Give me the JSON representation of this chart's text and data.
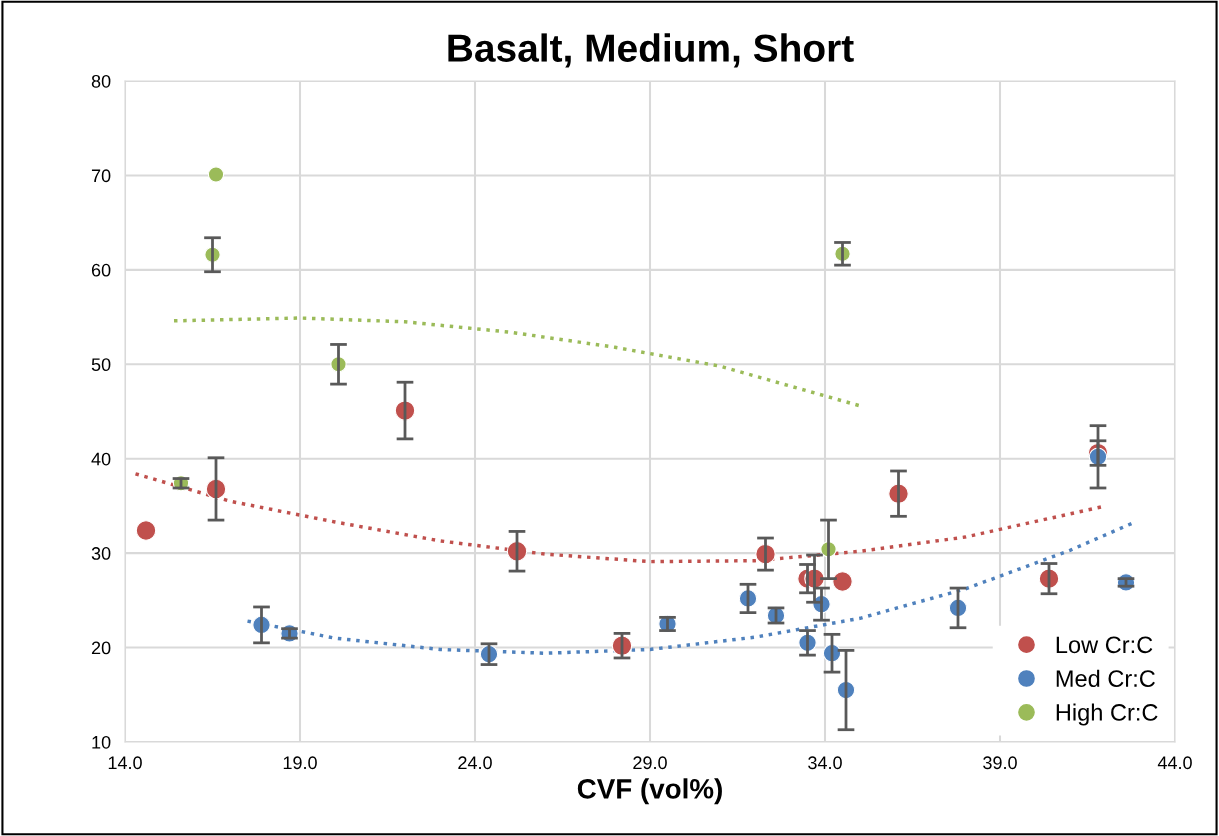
{
  "chart_data": {
    "type": "scatter",
    "title": "Basalt, Medium, Short",
    "xlabel": "CVF (vol%)",
    "xlim": [
      14,
      44
    ],
    "ylim": [
      10,
      80
    ],
    "xticks": [
      {
        "value": 14,
        "label": "14.0"
      },
      {
        "value": 19,
        "label": "19.0"
      },
      {
        "value": 24,
        "label": "24.0"
      },
      {
        "value": 29,
        "label": "29.0"
      },
      {
        "value": 34,
        "label": "34.0"
      },
      {
        "value": 39,
        "label": "39.0"
      },
      {
        "value": 44,
        "label": "44.0"
      }
    ],
    "yticks": [
      10,
      20,
      30,
      40,
      50,
      60,
      70,
      80
    ],
    "grid": true,
    "legend": "bottom right",
    "marker": "circle",
    "series": [
      {
        "name": "Low Cr:C",
        "color": "#c0504d",
        "x": [
          14.6,
          16.6,
          22.0,
          25.2,
          28.2,
          32.3,
          33.5,
          33.7,
          34.5,
          36.1,
          40.4,
          41.8
        ],
        "values": [
          32.4,
          36.8,
          45.1,
          30.2,
          20.2,
          29.9,
          27.3,
          27.3,
          27.0,
          36.3,
          27.3,
          40.6
        ],
        "errors": [
          null,
          3.3,
          3.0,
          2.1,
          1.3,
          1.7,
          1.5,
          2.5,
          null,
          2.4,
          1.6,
          1.3
        ]
      },
      {
        "name": "Med Cr:C",
        "color": "#4f81bd",
        "x": [
          17.9,
          18.7,
          24.4,
          29.5,
          31.8,
          32.6,
          33.5,
          33.9,
          34.2,
          34.6,
          37.8,
          41.8,
          42.6
        ],
        "values": [
          22.4,
          21.5,
          19.3,
          22.5,
          25.2,
          23.4,
          20.5,
          24.6,
          19.4,
          15.5,
          24.2,
          40.2,
          26.9
        ],
        "errors": [
          1.9,
          0.5,
          1.1,
          0.7,
          1.5,
          0.8,
          1.3,
          1.7,
          2.0,
          4.2,
          2.1,
          3.3,
          0.4
        ]
      },
      {
        "name": "High Cr:C",
        "color": "#9bbb59",
        "x": [
          15.6,
          16.6,
          16.5,
          20.1,
          34.1,
          34.5
        ],
        "values": [
          37.4,
          70.1,
          61.6,
          50.0,
          30.4,
          61.7
        ],
        "errors": [
          0.5,
          null,
          1.8,
          2.1,
          3.1,
          1.2
        ]
      },
      {
        "type": "line",
        "color": "#c0504d",
        "line_style": "dotted",
        "marker": "none",
        "x": [
          14.3,
          17,
          20,
          23,
          26,
          29,
          32,
          35,
          38,
          41.9
        ],
        "values": [
          38.4,
          35.5,
          33.3,
          31.3,
          29.9,
          29.1,
          29.2,
          30.2,
          31.7,
          34.9
        ]
      },
      {
        "type": "line",
        "color": "#4f81bd",
        "line_style": "dotted",
        "marker": "none",
        "x": [
          17.5,
          20,
          23,
          26,
          29,
          32,
          35,
          38,
          41,
          42.8
        ],
        "values": [
          22.8,
          21.0,
          19.8,
          19.4,
          19.8,
          21.1,
          23.1,
          26.2,
          30.3,
          33.2
        ]
      },
      {
        "type": "line",
        "color": "#9bbb59",
        "line_style": "dotted",
        "marker": "none",
        "x": [
          15.4,
          19,
          22,
          25,
          28,
          31,
          35
        ],
        "values": [
          54.6,
          54.9,
          54.5,
          53.4,
          51.8,
          49.8,
          45.6
        ]
      }
    ]
  }
}
